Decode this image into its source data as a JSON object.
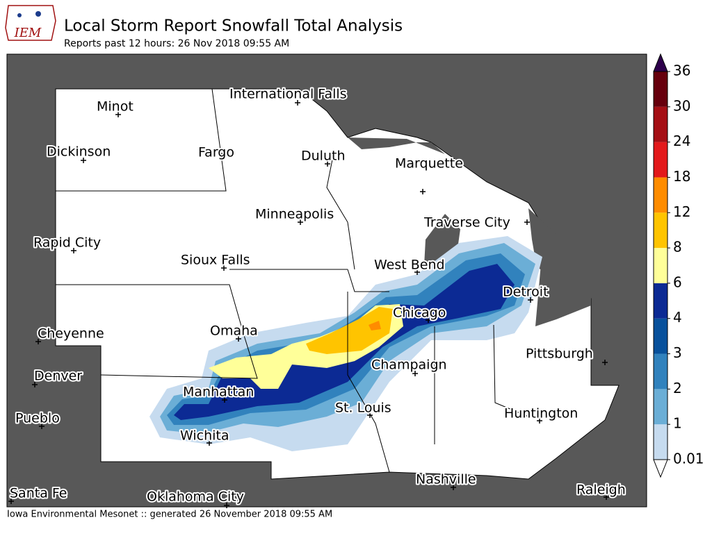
{
  "header": {
    "logo": "IEM",
    "title": "Local Storm Report Snowfall Total Analysis",
    "subtitle": "Reports past 12 hours: 26 Nov 2018 09:55 AM"
  },
  "cities": [
    "International Falls",
    "Minot",
    "Dickinson",
    "Fargo",
    "Duluth",
    "Marquette",
    "Minneapolis",
    "Traverse City",
    "Rapid City",
    "Sioux Falls",
    "West Bend",
    "Detroit",
    "Chicago",
    "Cheyenne",
    "Omaha",
    "Pittsburgh",
    "Champaign",
    "Denver",
    "Manhattan",
    "St. Louis",
    "Huntington",
    "Pueblo",
    "Wichita",
    "Nashville",
    "Santa Fe",
    "Oklahoma City",
    "Raleigh"
  ],
  "colorbar": {
    "levels": [
      0.01,
      1,
      2,
      3,
      4,
      6,
      8,
      12,
      18,
      24,
      30,
      36
    ],
    "colors": [
      "#c6dbef",
      "#6baed6",
      "#3182bd",
      "#08519c",
      "#0c2a94",
      "#ffff99",
      "#ffc400",
      "#ff8c00",
      "#e31a1c",
      "#a50f15",
      "#67000d"
    ],
    "under_color": "#ffffff",
    "over_color": "#2d004b"
  },
  "footer": "Iowa Environmental Mesonet :: generated 26 November 2018 09:55 AM"
}
